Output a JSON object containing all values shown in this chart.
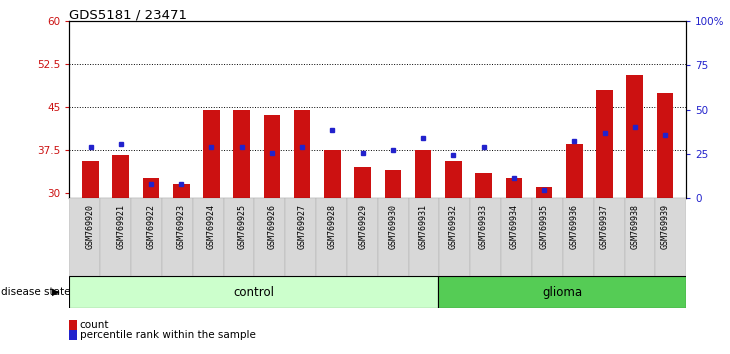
{
  "title": "GDS5181 / 23471",
  "samples": [
    "GSM769920",
    "GSM769921",
    "GSM769922",
    "GSM769923",
    "GSM769924",
    "GSM769925",
    "GSM769926",
    "GSM769927",
    "GSM769928",
    "GSM769929",
    "GSM769930",
    "GSM769931",
    "GSM769932",
    "GSM769933",
    "GSM769934",
    "GSM769935",
    "GSM769936",
    "GSM769937",
    "GSM769938",
    "GSM769939"
  ],
  "bar_values": [
    35.5,
    36.5,
    32.5,
    31.5,
    44.5,
    44.5,
    43.5,
    44.5,
    37.5,
    34.5,
    34.0,
    37.5,
    35.5,
    33.5,
    32.5,
    31.0,
    38.5,
    48.0,
    50.5,
    47.5
  ],
  "dot_values": [
    38.0,
    38.5,
    31.5,
    31.5,
    38.0,
    38.0,
    37.0,
    38.0,
    41.0,
    37.0,
    37.5,
    39.5,
    36.5,
    38.0,
    32.5,
    30.5,
    39.0,
    40.5,
    41.5,
    40.0
  ],
  "bar_color": "#cc1111",
  "dot_color": "#2222cc",
  "ylim_left": [
    29,
    60
  ],
  "ylim_right": [
    0,
    100
  ],
  "yticks_left": [
    30,
    37.5,
    45,
    52.5,
    60
  ],
  "yticks_right": [
    0,
    25,
    50,
    75,
    100
  ],
  "ytick_labels_left": [
    "30",
    "37.5",
    "45",
    "52.5",
    "60"
  ],
  "ytick_labels_right": [
    "0",
    "25",
    "50",
    "75",
    "100%"
  ],
  "hlines": [
    37.5,
    45.0,
    52.5
  ],
  "control_label": "control",
  "glioma_label": "glioma",
  "disease_state_label": "disease state",
  "legend_count_label": "count",
  "legend_percentile_label": "percentile rank within the sample",
  "bg_color": "#d8d8d8",
  "control_fill": "#ccffcc",
  "glioma_fill": "#55cc55",
  "bar_bottom": 29,
  "n_control": 12,
  "n_glioma": 8
}
